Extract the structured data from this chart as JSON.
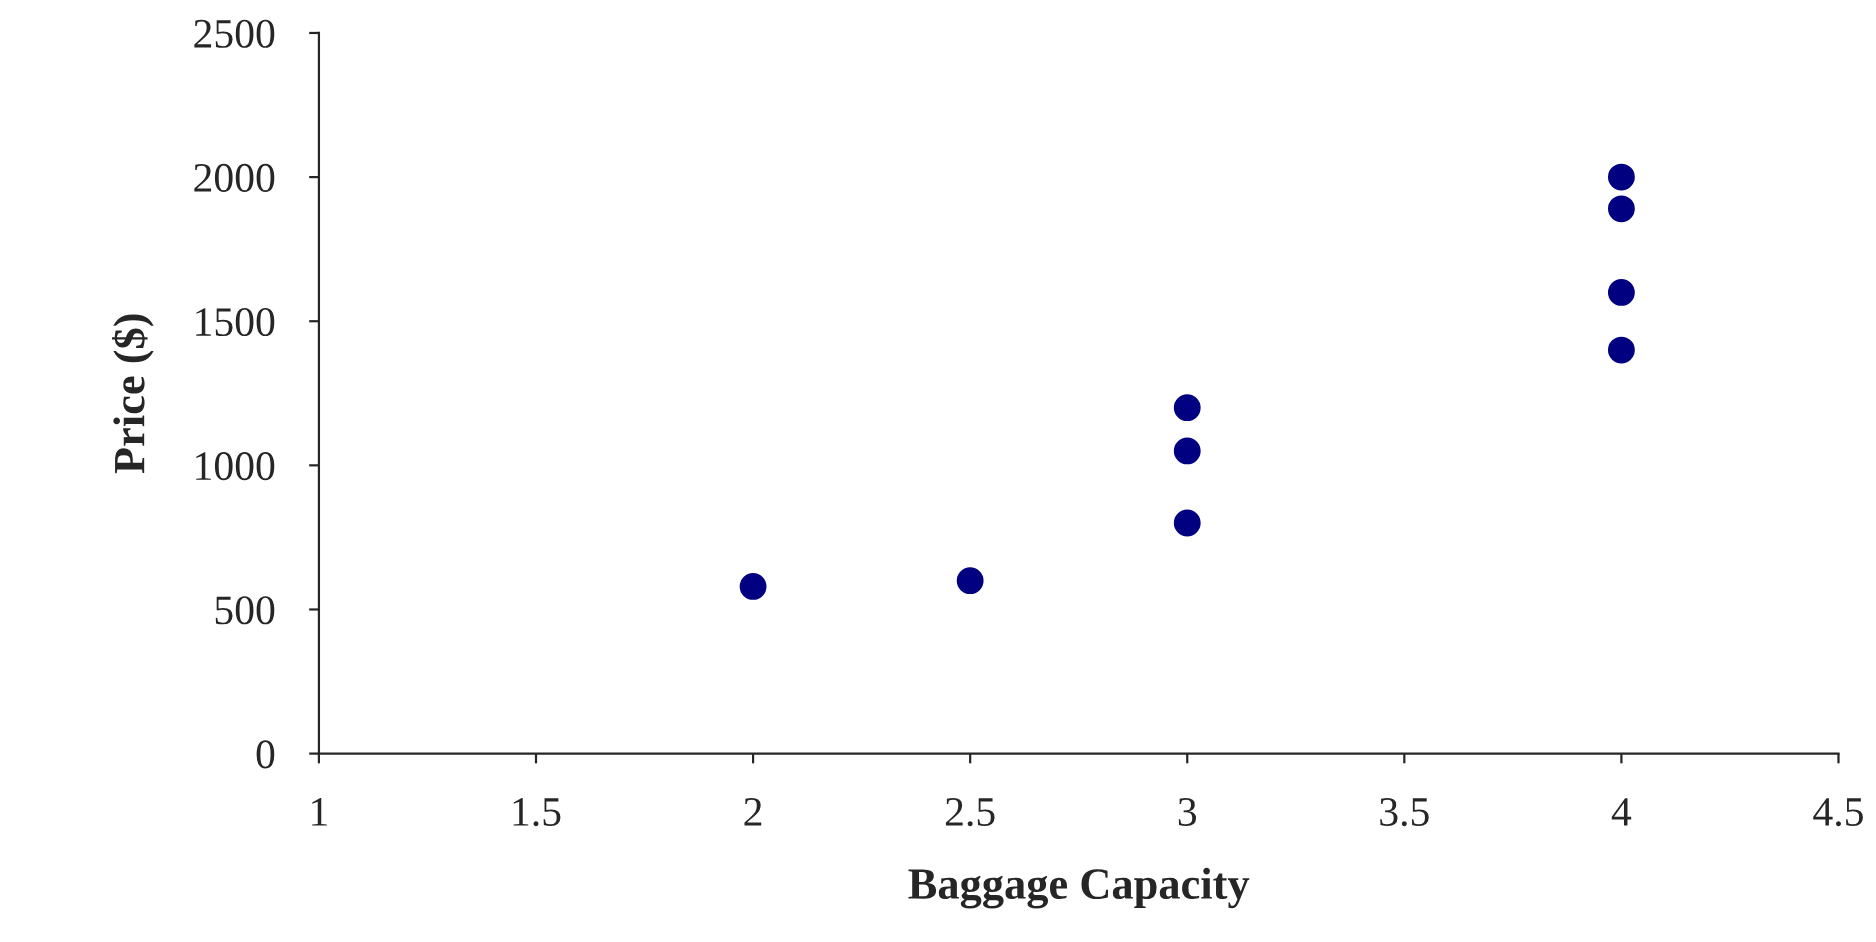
{
  "chart_data": {
    "type": "scatter",
    "xlabel": "Baggage Capacity",
    "ylabel": "Price ($)",
    "series": [
      {
        "color": "#000080",
        "x": [
          2,
          2.5,
          3,
          3,
          3,
          4,
          4,
          4,
          4
        ],
        "values": [
          580,
          600,
          1200,
          1050,
          800,
          2000,
          1890,
          1600,
          1400
        ]
      }
    ],
    "xlim": [
      1,
      4.5
    ],
    "xticks": [
      1,
      1.5,
      2,
      2.5,
      3,
      3.5,
      4,
      4.5
    ],
    "ylim": [
      0,
      2500
    ],
    "yticks": [
      0,
      500,
      1000,
      1500,
      2000,
      2500
    ],
    "marker": "circle",
    "grid": false
  }
}
